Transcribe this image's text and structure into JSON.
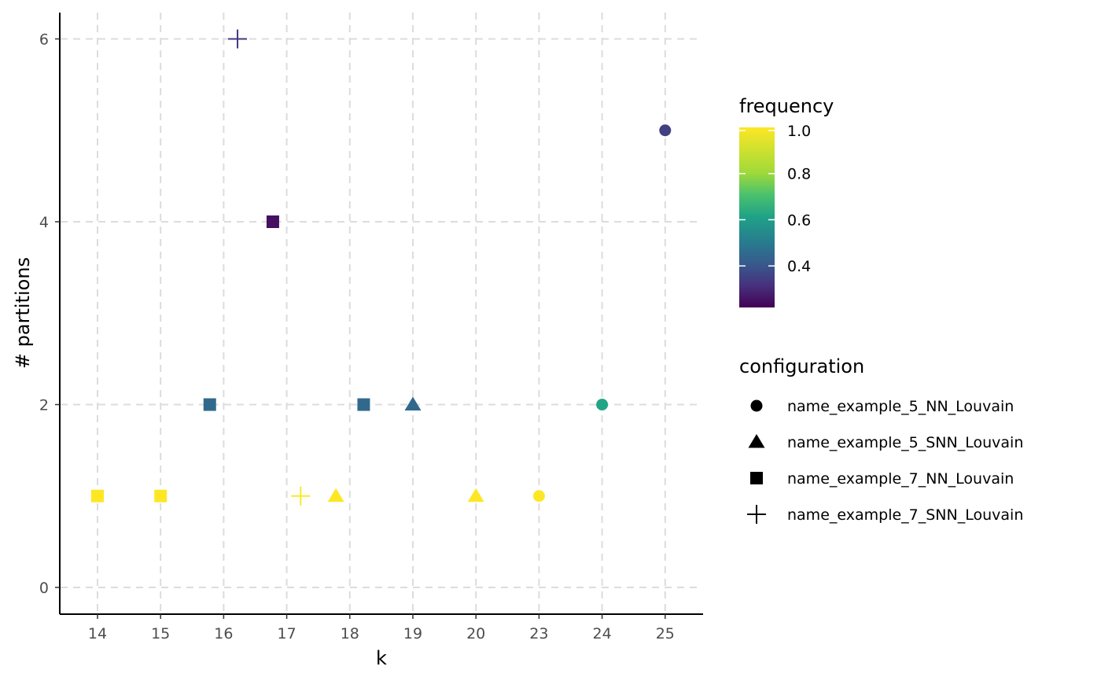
{
  "chart_data": {
    "type": "scatter",
    "title": "",
    "xlabel": "k",
    "ylabel": "# partitions",
    "x_categories": [
      "14",
      "15",
      "16",
      "17",
      "18",
      "19",
      "20",
      "23",
      "24",
      "25"
    ],
    "ylim": [
      -0.3,
      6.3
    ],
    "yticks": [
      0,
      2,
      4,
      6
    ],
    "grid": true,
    "colorbar": {
      "title": "frequency",
      "range": [
        0.22,
        1.0
      ],
      "ticks": [
        0.4,
        0.6,
        0.8,
        1.0
      ],
      "tick_labels": [
        "0.4",
        "0.6",
        "0.8",
        "1.0"
      ],
      "palette": "viridis"
    },
    "shape_legend": {
      "title": "configuration",
      "entries": [
        {
          "label": "name_example_5_NN_Louvain",
          "shape": "circle"
        },
        {
          "label": "name_example_5_SNN_Louvain",
          "shape": "triangle"
        },
        {
          "label": "name_example_7_NN_Louvain",
          "shape": "square"
        },
        {
          "label": "name_example_7_SNN_Louvain",
          "shape": "plus"
        }
      ]
    },
    "points": [
      {
        "k": "14",
        "x_offset": 0.0,
        "y": 1,
        "frequency": 1.0,
        "config": "name_example_7_NN_Louvain"
      },
      {
        "k": "15",
        "x_offset": 0.0,
        "y": 1,
        "frequency": 1.0,
        "config": "name_example_7_NN_Louvain"
      },
      {
        "k": "16",
        "x_offset": -0.22,
        "y": 2,
        "frequency": 0.45,
        "config": "name_example_7_NN_Louvain"
      },
      {
        "k": "16",
        "x_offset": 0.22,
        "y": 6,
        "frequency": 0.33,
        "config": "name_example_7_SNN_Louvain"
      },
      {
        "k": "17",
        "x_offset": -0.22,
        "y": 4,
        "frequency": 0.25,
        "config": "name_example_7_NN_Louvain"
      },
      {
        "k": "17",
        "x_offset": 0.22,
        "y": 1,
        "frequency": 1.0,
        "config": "name_example_7_SNN_Louvain"
      },
      {
        "k": "18",
        "x_offset": -0.22,
        "y": 1,
        "frequency": 1.0,
        "config": "name_example_5_SNN_Louvain"
      },
      {
        "k": "18",
        "x_offset": 0.22,
        "y": 2,
        "frequency": 0.45,
        "config": "name_example_7_NN_Louvain"
      },
      {
        "k": "19",
        "x_offset": 0.0,
        "y": 2,
        "frequency": 0.45,
        "config": "name_example_5_SNN_Louvain"
      },
      {
        "k": "20",
        "x_offset": 0.0,
        "y": 1,
        "frequency": 1.0,
        "config": "name_example_5_SNN_Louvain"
      },
      {
        "k": "23",
        "x_offset": 0.0,
        "y": 1,
        "frequency": 1.0,
        "config": "name_example_5_NN_Louvain"
      },
      {
        "k": "24",
        "x_offset": 0.0,
        "y": 2,
        "frequency": 0.62,
        "config": "name_example_5_NN_Louvain"
      },
      {
        "k": "25",
        "x_offset": 0.0,
        "y": 5,
        "frequency": 0.35,
        "config": "name_example_5_NN_Louvain"
      }
    ]
  }
}
